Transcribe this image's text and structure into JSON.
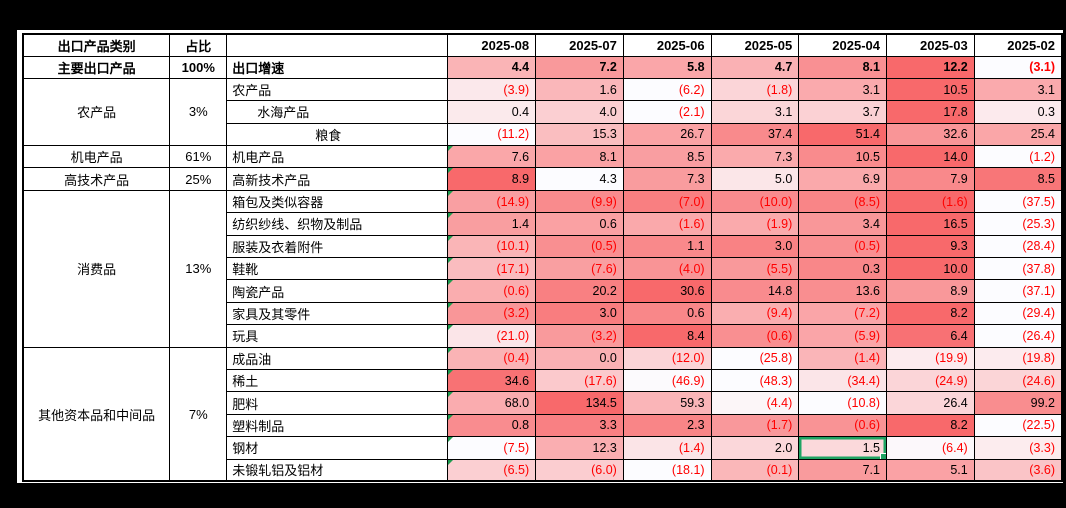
{
  "window": {
    "background_color": "#000000",
    "sheet_background_color": "#FFFFFF"
  },
  "formatting": {
    "scale_low_color": "#FCFCFF",
    "scale_high_color": "#F8696B",
    "negative_text_color": "#FF0000",
    "positive_text_color": "#000000",
    "negative_number_style": "parentheses",
    "error_indicator_color": "#1E9C4F",
    "selection_border_color": "#1FA463"
  },
  "selection": {
    "row_label": "钢材",
    "month": "2025-04",
    "month_index": 4,
    "value": 1.5
  },
  "table": {
    "header": {
      "category_col": "出口产品类别",
      "share_col": "占比",
      "product_col": "",
      "months": [
        "2025-08",
        "2025-07",
        "2025-06",
        "2025-05",
        "2025-04",
        "2025-03",
        "2025-02"
      ]
    },
    "groups": [
      {
        "category": "主要出口产品",
        "share": "100%",
        "bold": true,
        "rows": [
          {
            "label": "出口增速",
            "bold": true,
            "values": [
              4.4,
              7.2,
              5.8,
              4.7,
              8.1,
              12.2,
              -3.1
            ],
            "scale": [
              -3.1,
              12.2
            ]
          }
        ]
      },
      {
        "category": "农产品",
        "share": "3%",
        "rows": [
          {
            "label": "农产品",
            "values": [
              -3.9,
              1.6,
              -6.2,
              -1.8,
              3.1,
              10.5,
              3.1
            ],
            "scale": [
              -6.2,
              10.5
            ]
          },
          {
            "label": "水海产品",
            "indent": 30,
            "values": [
              0.4,
              4.0,
              -2.1,
              3.1,
              3.7,
              17.8,
              0.3
            ],
            "scale": [
              -2.1,
              17.8
            ]
          },
          {
            "label": "粮食",
            "indent": 88,
            "values": [
              -11.2,
              15.3,
              26.7,
              37.4,
              51.4,
              32.6,
              25.4
            ],
            "scale": [
              -11.2,
              51.4
            ]
          }
        ]
      },
      {
        "category": "机电产品",
        "share": "61%",
        "rows": [
          {
            "label": "机电产品",
            "triangle": true,
            "values": [
              7.6,
              8.1,
              8.5,
              7.3,
              10.5,
              14.0,
              -1.2
            ],
            "scale": [
              -1.2,
              14.0
            ]
          }
        ]
      },
      {
        "category": "高技术产品",
        "share": "25%",
        "rows": [
          {
            "label": "高新技术产品",
            "triangle": true,
            "values": [
              8.9,
              4.3,
              7.3,
              5.0,
              6.9,
              7.9,
              8.5
            ],
            "scale": [
              4.3,
              8.9
            ]
          }
        ]
      },
      {
        "category": "消费品",
        "share": "13%",
        "rows": [
          {
            "label": "箱包及类似容器",
            "triangle": true,
            "values": [
              -14.9,
              -9.9,
              -7.0,
              -10.0,
              -8.5,
              -1.6,
              -37.5
            ],
            "scale": [
              -37.5,
              -1.6
            ]
          },
          {
            "label": "纺织纱线、织物及制品",
            "triangle": true,
            "values": [
              1.4,
              0.6,
              -1.6,
              -1.9,
              3.4,
              16.5,
              -25.3
            ],
            "scale": [
              -25.3,
              16.5
            ]
          },
          {
            "label": "服装及衣着附件",
            "triangle": true,
            "values": [
              -10.1,
              -0.5,
              1.1,
              3.0,
              -0.5,
              9.3,
              -28.4
            ],
            "scale": [
              -28.4,
              9.3
            ]
          },
          {
            "label": "鞋靴",
            "triangle": true,
            "values": [
              -17.1,
              -7.6,
              -4.0,
              -5.5,
              0.3,
              10.0,
              -37.8
            ],
            "scale": [
              -37.8,
              10.0
            ]
          },
          {
            "label": "陶瓷产品",
            "triangle": true,
            "values": [
              -0.6,
              20.2,
              30.6,
              14.8,
              13.6,
              8.9,
              -37.1
            ],
            "scale": [
              -37.1,
              30.6
            ]
          },
          {
            "label": "家具及其零件",
            "triangle": true,
            "values": [
              -3.2,
              3.0,
              0.6,
              -9.4,
              -7.2,
              8.2,
              -29.4
            ],
            "scale": [
              -29.4,
              8.2
            ]
          },
          {
            "label": "玩具",
            "triangle": true,
            "values": [
              -21.0,
              -3.2,
              8.4,
              -0.6,
              -5.9,
              6.4,
              -26.4
            ],
            "scale": [
              -26.4,
              8.4
            ]
          }
        ]
      },
      {
        "category": "其他资本品和中间品",
        "share": "7%",
        "rows": [
          {
            "label": "成品油",
            "triangle": true,
            "values": [
              -0.4,
              0.0,
              -12.0,
              -25.8,
              -1.4,
              -19.9,
              -19.8
            ],
            "scale": [
              -25.8,
              25
            ]
          },
          {
            "label": "稀土",
            "triangle": true,
            "values": [
              34.6,
              -17.6,
              -46.9,
              -48.3,
              -34.4,
              -24.9,
              -24.6
            ],
            "scale": [
              -48.3,
              40
            ]
          },
          {
            "label": "肥料",
            "triangle": true,
            "values": [
              68.0,
              134.5,
              59.3,
              -4.4,
              -10.8,
              26.4,
              99.2
            ],
            "scale": [
              -10.8,
              134.5
            ]
          },
          {
            "label": "塑料制品",
            "triangle": true,
            "values": [
              0.8,
              3.3,
              2.3,
              -1.7,
              -0.6,
              8.2,
              -22.5
            ],
            "scale": [
              -22.5,
              8.2
            ]
          },
          {
            "label": "钢材",
            "triangle": true,
            "values": [
              -7.5,
              12.3,
              -1.4,
              2.0,
              1.5,
              -6.4,
              -3.3
            ],
            "scale": [
              -7.5,
              30
            ]
          },
          {
            "label": "未锻轧铝及铝材",
            "triangle": true,
            "values": [
              -6.5,
              -6.0,
              -18.1,
              -0.1,
              7.1,
              5.1,
              -3.6
            ],
            "scale": [
              -18.1,
              20
            ]
          }
        ]
      }
    ]
  }
}
